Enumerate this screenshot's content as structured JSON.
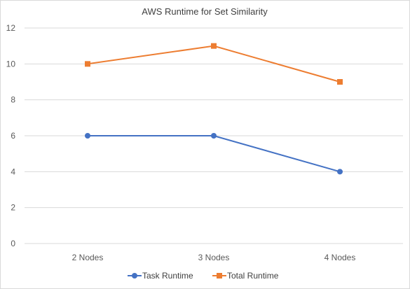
{
  "chart_data": {
    "type": "line",
    "title": "AWS Runtime for Set Similarity",
    "xlabel": "",
    "ylabel": "",
    "categories": [
      "2 Nodes",
      "3 Nodes",
      "4 Nodes"
    ],
    "ylim": [
      0,
      12
    ],
    "yticks": [
      "0",
      "2",
      "4",
      "6",
      "8",
      "10",
      "12"
    ],
    "grid": true,
    "legend_position": "bottom",
    "series": [
      {
        "name": "Task Runtime",
        "values": [
          6,
          6,
          4
        ],
        "color": "#4472C4",
        "marker": "circle"
      },
      {
        "name": "Total Runtime",
        "values": [
          10,
          11,
          9
        ],
        "color": "#ED7D31",
        "marker": "square"
      }
    ]
  }
}
